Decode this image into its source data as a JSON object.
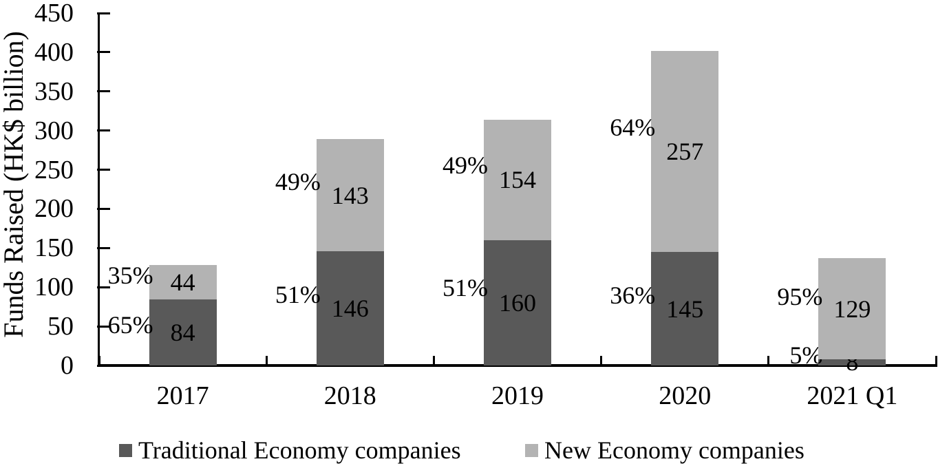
{
  "chart_data": {
    "type": "bar",
    "stacked": true,
    "title": "",
    "xlabel": "",
    "ylabel": "Funds Raised (HK$ billion)",
    "ylim": [
      0,
      450
    ],
    "ytick_step": 50,
    "yticks": [
      0,
      50,
      100,
      150,
      200,
      250,
      300,
      350,
      400,
      450
    ],
    "grid": false,
    "legend_position": "bottom",
    "categories": [
      "2017",
      "2018",
      "2019",
      "2020",
      "2021 Q1"
    ],
    "series": [
      {
        "name": "Traditional Economy companies",
        "color": "#595959",
        "values": [
          84,
          146,
          160,
          145,
          8
        ],
        "percent_labels": [
          "65%",
          "51%",
          "51%",
          "36%",
          "5%"
        ]
      },
      {
        "name": "New Economy companies",
        "color": "#b3b3b3",
        "values": [
          44,
          143,
          154,
          257,
          129
        ],
        "percent_labels": [
          "35%",
          "49%",
          "49%",
          "64%",
          "95%"
        ]
      }
    ]
  },
  "colors": {
    "axis": "#000000",
    "background": "#ffffff",
    "text": "#000000"
  }
}
